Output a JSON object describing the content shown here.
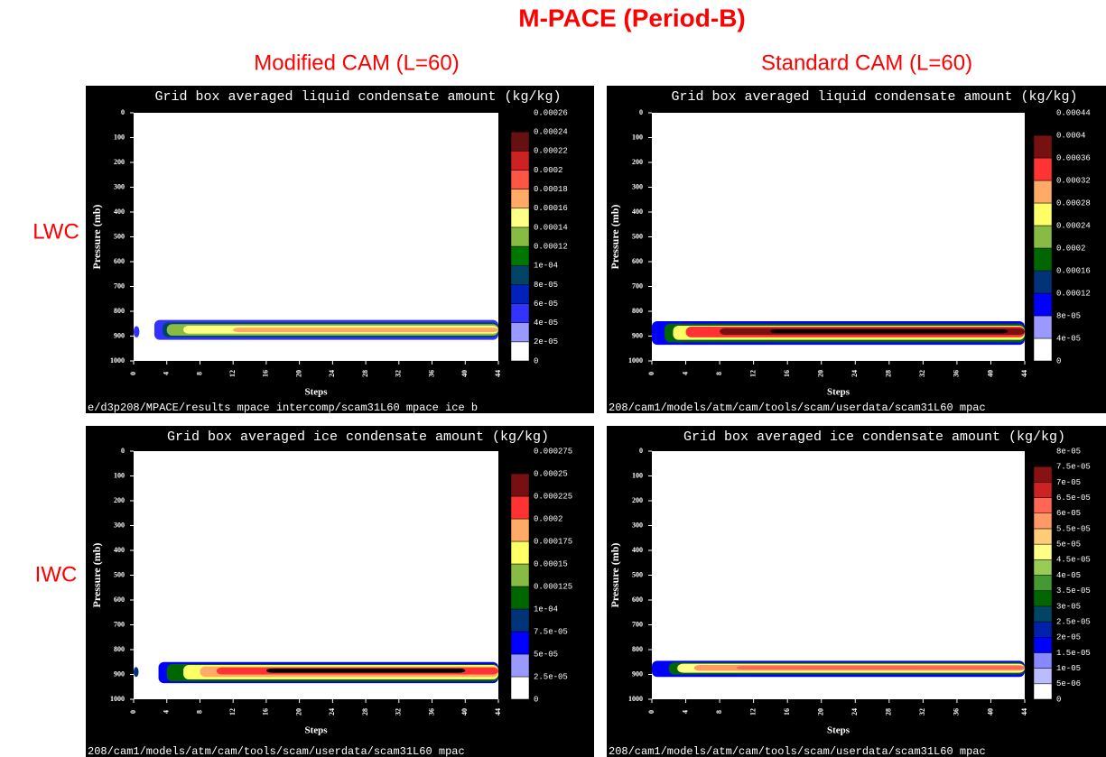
{
  "title": "M-PACE (Period-B)",
  "columns": [
    "Modified CAM (L=60)",
    "Standard CAM (L=60)"
  ],
  "rows": [
    "LWC",
    "IWC"
  ],
  "chart_data": [
    {
      "type": "contour",
      "title": "Grid box averaged liquid condensate amount (kg/kg)",
      "xlabel": "Steps",
      "ylabel": "Pressure (mb)",
      "footer": "e/d3p208/MPACE/results mpace intercomp/scam31L60 mpace ice b",
      "xlim": [
        0,
        44
      ],
      "ylim": [
        0,
        1000
      ],
      "xticks": [
        0,
        4,
        8,
        12,
        16,
        20,
        24,
        28,
        32,
        36,
        40,
        44
      ],
      "yticks": [
        0,
        100,
        200,
        300,
        400,
        500,
        600,
        700,
        800,
        900,
        1000
      ],
      "levels": [
        0,
        {
          "value": 2e-05,
          "label": "2e-05"
        },
        {
          "value": 4e-05,
          "label": "4e-05"
        },
        {
          "value": 6e-05,
          "label": "6e-05"
        },
        {
          "value": 8e-05,
          "label": "8e-05"
        },
        {
          "value": 0.0001,
          "label": "1e-04"
        },
        0.00012,
        0.00014,
        0.00016,
        0.00018,
        0.0002,
        0.00022,
        0.00024,
        0.00026
      ],
      "colors": [
        "#ffffff",
        "#9999ff",
        "#3333ff",
        "#0022bb",
        "#004466",
        "#007700",
        "#88bb44",
        "#ffff88",
        "#ffaa66",
        "#ff5544",
        "#cc2222",
        "#661111",
        "#000000"
      ]
    },
    {
      "type": "contour",
      "title": "Grid box averaged liquid condensate amount (kg/kg)",
      "xlabel": "Steps",
      "ylabel": "Pressure (mb)",
      "footer": "208/cam1/models/atm/cam/tools/scam/userdata/scam31L60 mpac",
      "xlim": [
        0,
        44
      ],
      "ylim": [
        0,
        1000
      ],
      "xticks": [
        0,
        4,
        8,
        12,
        16,
        20,
        24,
        28,
        32,
        36,
        40,
        44
      ],
      "yticks": [
        0,
        100,
        200,
        300,
        400,
        500,
        600,
        700,
        800,
        900,
        1000
      ],
      "levels": [
        0,
        {
          "value": 4e-05,
          "label": "4e-05"
        },
        {
          "value": 8e-05,
          "label": "8e-05"
        },
        0.00012,
        0.00016,
        0.0002,
        0.00024,
        0.00028,
        0.00032,
        0.00036,
        0.0004,
        0.00044
      ],
      "colors": [
        "#ffffff",
        "#9999ff",
        "#0000ff",
        "#003377",
        "#006600",
        "#88bb44",
        "#ffff66",
        "#ffaa66",
        "#ff3333",
        "#771111",
        "#000000"
      ]
    },
    {
      "type": "contour",
      "title": "Grid box averaged ice condensate amount (kg/kg)",
      "xlabel": "Steps",
      "ylabel": "Pressure (mb)",
      "footer": "208/cam1/models/atm/cam/tools/scam/userdata/scam31L60 mpac",
      "xlim": [
        0,
        44
      ],
      "ylim": [
        0,
        1000
      ],
      "xticks": [
        0,
        4,
        8,
        12,
        16,
        20,
        24,
        28,
        32,
        36,
        40,
        44
      ],
      "yticks": [
        0,
        100,
        200,
        300,
        400,
        500,
        600,
        700,
        800,
        900,
        1000
      ],
      "levels": [
        0,
        {
          "value": 2.5e-05,
          "label": "2.5e-05"
        },
        {
          "value": 5e-05,
          "label": "5e-05"
        },
        {
          "value": 7.5e-05,
          "label": "7.5e-05"
        },
        {
          "value": 0.0001,
          "label": "1e-04"
        },
        0.000125,
        0.00015,
        0.000175,
        0.0002,
        0.000225,
        0.00025,
        0.000275
      ],
      "colors": [
        "#ffffff",
        "#9999ff",
        "#0000ff",
        "#003377",
        "#006600",
        "#88bb44",
        "#ffff66",
        "#ffaa66",
        "#ff3333",
        "#771111",
        "#000000"
      ]
    },
    {
      "type": "contour",
      "title": "Grid box averaged ice condensate amount (kg/kg)",
      "xlabel": "Steps",
      "ylabel": "Pressure (mb)",
      "footer": "208/cam1/models/atm/cam/tools/scam/userdata/scam31L60 mpac",
      "xlim": [
        0,
        44
      ],
      "ylim": [
        0,
        1000
      ],
      "xticks": [
        0,
        4,
        8,
        12,
        16,
        20,
        24,
        28,
        32,
        36,
        40,
        44
      ],
      "yticks": [
        0,
        100,
        200,
        300,
        400,
        500,
        600,
        700,
        800,
        900,
        1000
      ],
      "levels": [
        0,
        {
          "value": 5e-06,
          "label": "5e-06"
        },
        {
          "value": 1e-05,
          "label": "1e-05"
        },
        {
          "value": 1.5e-05,
          "label": "1.5e-05"
        },
        {
          "value": 2e-05,
          "label": "2e-05"
        },
        {
          "value": 2.5e-05,
          "label": "2.5e-05"
        },
        {
          "value": 3e-05,
          "label": "3e-05"
        },
        {
          "value": 3.5e-05,
          "label": "3.5e-05"
        },
        {
          "value": 4e-05,
          "label": "4e-05"
        },
        {
          "value": 4.5e-05,
          "label": "4.5e-05"
        },
        {
          "value": 5e-05,
          "label": "5e-05"
        },
        {
          "value": 5.5e-05,
          "label": "5.5e-05"
        },
        {
          "value": 6e-05,
          "label": "6e-05"
        },
        {
          "value": 6.5e-05,
          "label": "6.5e-05"
        },
        {
          "value": 7e-05,
          "label": "7e-05"
        },
        {
          "value": 7.5e-05,
          "label": "7.5e-05"
        },
        {
          "value": 8e-05,
          "label": "8e-05"
        }
      ],
      "colors": [
        "#ffffff",
        "#bbbbff",
        "#8888ff",
        "#0000ff",
        "#0022aa",
        "#004466",
        "#006600",
        "#449933",
        "#99cc55",
        "#ffff88",
        "#ffcc77",
        "#ff9966",
        "#ff6655",
        "#cc2222",
        "#881111",
        "#000000"
      ]
    }
  ]
}
